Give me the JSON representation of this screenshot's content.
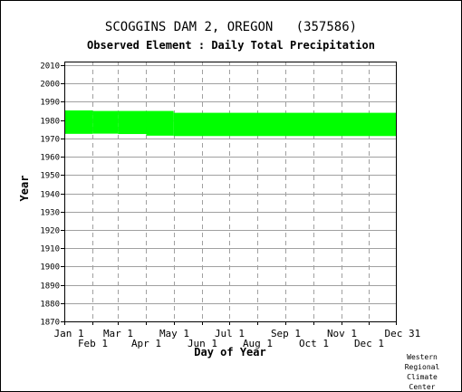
{
  "page": {
    "title": "SCOGGINS DAM 2, OREGON   (357586)",
    "subtitle": "Observed Element : Daily Total Precipitation",
    "credit_lines": [
      "Western",
      "Regional",
      "Climate",
      "Center"
    ]
  },
  "chart_data": {
    "type": "area",
    "title": "SCOGGINS DAM 2, OREGON   (357586)",
    "subtitle": "Observed Element : Daily Total Precipitation",
    "xlabel": "Day of Year",
    "ylabel": "Year",
    "xlim": [
      1,
      365
    ],
    "ylim": [
      1870,
      2012
    ],
    "grid": true,
    "y_ticks": [
      1870,
      1880,
      1890,
      1900,
      1910,
      1920,
      1930,
      1940,
      1950,
      1960,
      1970,
      1980,
      1990,
      2000,
      2010
    ],
    "x_ticks_upper": [
      {
        "label": "Jan 1",
        "day": 1
      },
      {
        "label": "Mar 1",
        "day": 60
      },
      {
        "label": "May 1",
        "day": 121
      },
      {
        "label": "Jul 1",
        "day": 182
      },
      {
        "label": "Sep 1",
        "day": 244
      },
      {
        "label": "Nov 1",
        "day": 305
      },
      {
        "label": "Dec 31",
        "day": 365
      }
    ],
    "x_ticks_lower": [
      {
        "label": "Feb 1",
        "day": 32
      },
      {
        "label": "Apr 1",
        "day": 91
      },
      {
        "label": "Jun 1",
        "day": 152
      },
      {
        "label": "Aug 1",
        "day": 213
      },
      {
        "label": "Oct 1",
        "day": 274
      },
      {
        "label": "Dec 1",
        "day": 335
      }
    ],
    "coverage_color": "#00ff00",
    "coverage": [
      {
        "day_start": 1,
        "day_end": 32,
        "year_start": 1972.5,
        "year_end": 1985.3
      },
      {
        "day_start": 32,
        "day_end": 60,
        "year_start": 1972.6,
        "year_end": 1985.0
      },
      {
        "day_start": 60,
        "day_end": 91,
        "year_start": 1972.4,
        "year_end": 1985.0
      },
      {
        "day_start": 91,
        "day_end": 121,
        "year_start": 1971.5,
        "year_end": 1985.0
      },
      {
        "day_start": 121,
        "day_end": 365,
        "year_start": 1971.3,
        "year_end": 1984.0
      }
    ]
  }
}
